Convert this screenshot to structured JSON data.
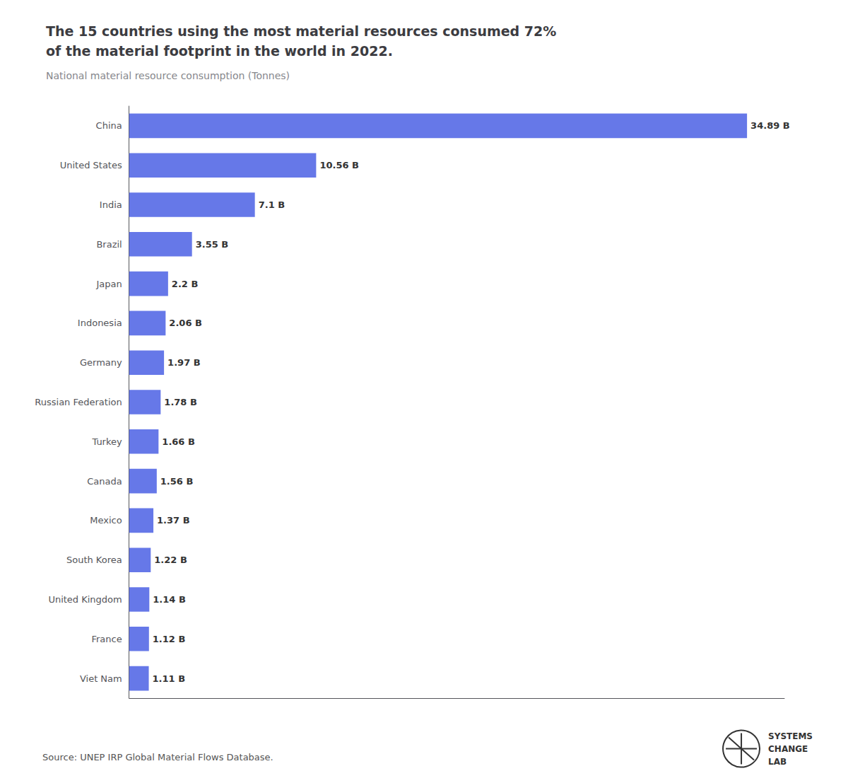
{
  "chart_data": {
    "type": "bar",
    "orientation": "horizontal",
    "title": "The 15 countries using the most material resources consumed 72%\nof the material footprint in the world in 2022.",
    "subtitle": "National material resource consumption (Tonnes)",
    "source": "Source: UNEP IRP Global Material Flows Database.",
    "annotations": [
      "SYSTEMS",
      "CHANGE",
      "LAB"
    ],
    "categories": [
      "China",
      "United States",
      "India",
      "Brazil",
      "Japan",
      "Indonesia",
      "Germany",
      "Russian Federation",
      "Turkey",
      "Canada",
      "Mexico",
      "South Korea",
      "United Kingdom",
      "France",
      "Viet Nam"
    ],
    "values": [
      34.89,
      10.56,
      7.1,
      3.55,
      2.2,
      2.06,
      1.97,
      1.78,
      1.66,
      1.56,
      1.37,
      1.22,
      1.14,
      1.12,
      1.11
    ],
    "value_labels": [
      "34.89 B",
      "10.56 B",
      "7.1 B",
      "3.55 B",
      "2.2 B",
      "2.06 B",
      "1.97 B",
      "1.78 B",
      "1.66 B",
      "1.56 B",
      "1.37 B",
      "1.22 B",
      "1.14 B",
      "1.12 B",
      "1.11 B"
    ],
    "data_labels": true,
    "color": "#6678e8",
    "xlim": [
      0,
      37
    ],
    "grid": false,
    "tick_labels": "y"
  }
}
